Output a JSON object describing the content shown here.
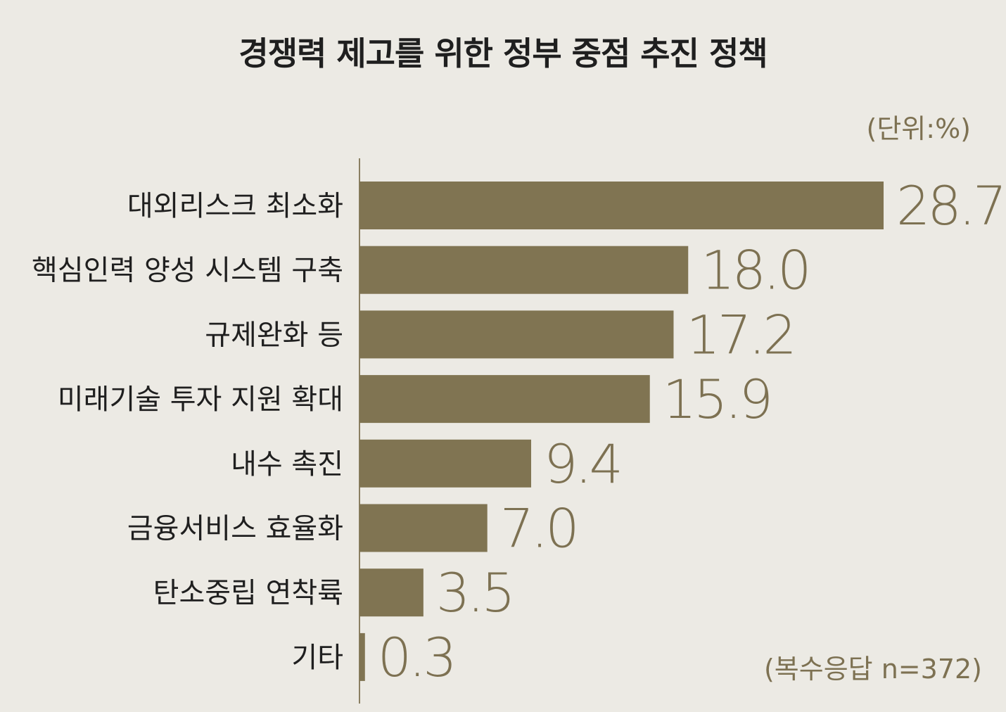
{
  "chart_data": {
    "type": "bar",
    "orientation": "horizontal",
    "title": "경쟁력 제고를 위한 정부 중점 추진 정책",
    "unit": "(단위:%)",
    "note": "(복수응답 n=372)",
    "categories": [
      "대외리스크 최소화",
      "핵심인력 양성 시스템 구축",
      "규제완화 등",
      "미래기술 투자 지원 확대",
      "내수 촉진",
      "금융서비스 효율화",
      "탄소중립 연착륙",
      "기타"
    ],
    "values": [
      28.7,
      18.0,
      17.2,
      15.9,
      9.4,
      7.0,
      3.5,
      0.3
    ],
    "value_labels": [
      "28.7",
      "18.0",
      "17.2",
      "15.9",
      "9.4",
      "7.0",
      "3.5",
      "0.3"
    ],
    "bar_color": "#807452",
    "label_color": "#7D7152",
    "grid": false
  }
}
